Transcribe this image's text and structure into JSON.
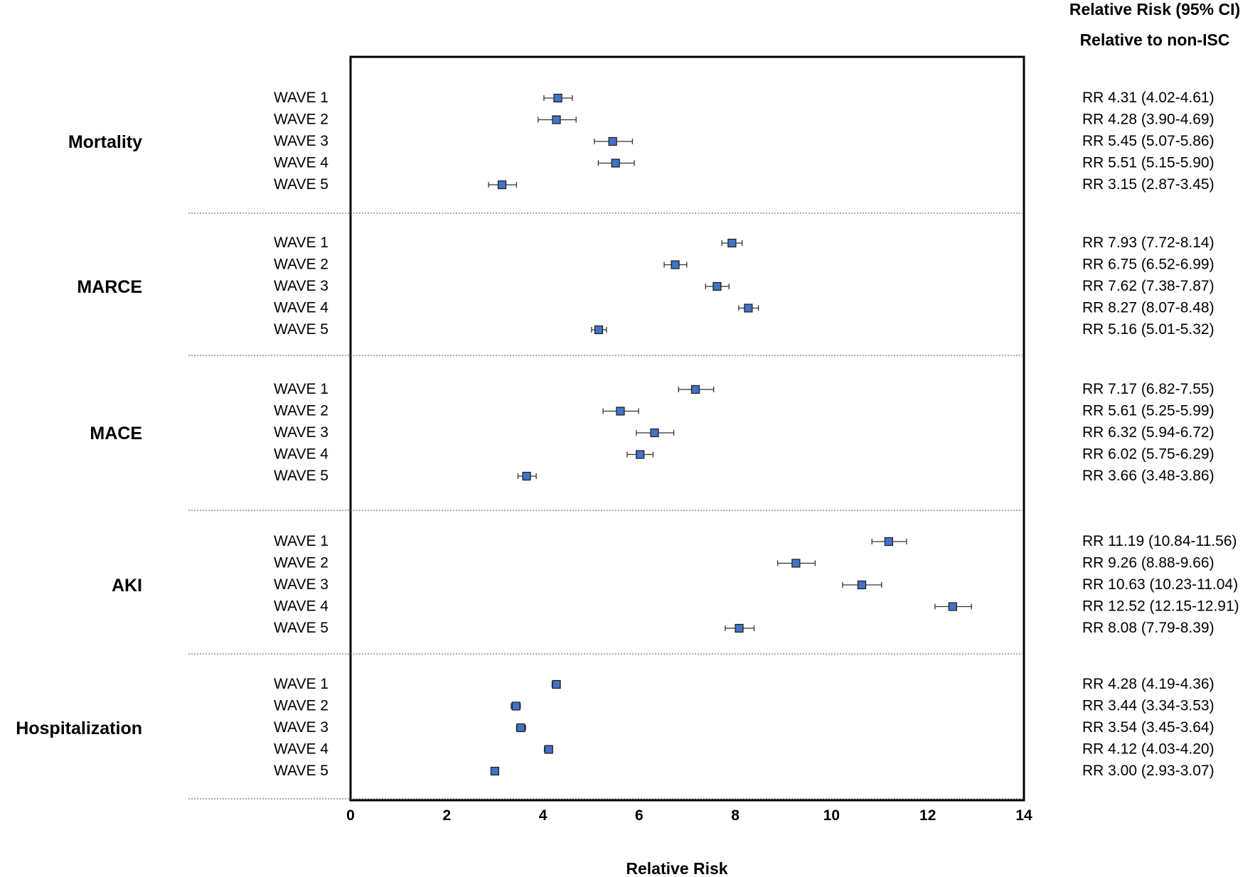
{
  "header": {
    "line1": "Relative Risk (95% CI)",
    "line2": "Relative to non-ISC"
  },
  "chart_data": {
    "type": "forest",
    "xlabel": "Relative Risk",
    "xlim": [
      0,
      14
    ],
    "xticks": [
      0,
      2,
      4,
      6,
      8,
      10,
      12,
      14
    ],
    "marker_color": "#4472c4",
    "groups": [
      {
        "name": "Mortality",
        "rows": [
          {
            "label": "WAVE 1",
            "rr": 4.31,
            "lo": 4.02,
            "hi": 4.61,
            "text": "RR 4.31 (4.02-4.61)"
          },
          {
            "label": "WAVE 2",
            "rr": 4.28,
            "lo": 3.9,
            "hi": 4.69,
            "text": "RR 4.28 (3.90-4.69)"
          },
          {
            "label": "WAVE 3",
            "rr": 5.45,
            "lo": 5.07,
            "hi": 5.86,
            "text": "RR 5.45 (5.07-5.86)"
          },
          {
            "label": "WAVE 4",
            "rr": 5.51,
            "lo": 5.15,
            "hi": 5.9,
            "text": "RR 5.51 (5.15-5.90)"
          },
          {
            "label": "WAVE 5",
            "rr": 3.15,
            "lo": 2.87,
            "hi": 3.45,
            "text": "RR 3.15 (2.87-3.45)"
          }
        ]
      },
      {
        "name": "MARCE",
        "rows": [
          {
            "label": "WAVE 1",
            "rr": 7.93,
            "lo": 7.72,
            "hi": 8.14,
            "text": "RR 7.93 (7.72-8.14)"
          },
          {
            "label": "WAVE 2",
            "rr": 6.75,
            "lo": 6.52,
            "hi": 6.99,
            "text": "RR 6.75 (6.52-6.99)"
          },
          {
            "label": "WAVE 3",
            "rr": 7.62,
            "lo": 7.38,
            "hi": 7.87,
            "text": "RR 7.62 (7.38-7.87)"
          },
          {
            "label": "WAVE 4",
            "rr": 8.27,
            "lo": 8.07,
            "hi": 8.48,
            "text": "RR 8.27 (8.07-8.48)"
          },
          {
            "label": "WAVE 5",
            "rr": 5.16,
            "lo": 5.01,
            "hi": 5.32,
            "text": "RR 5.16 (5.01-5.32)"
          }
        ]
      },
      {
        "name": "MACE",
        "rows": [
          {
            "label": "WAVE 1",
            "rr": 7.17,
            "lo": 6.82,
            "hi": 7.55,
            "text": "RR 7.17 (6.82-7.55)"
          },
          {
            "label": "WAVE 2",
            "rr": 5.61,
            "lo": 5.25,
            "hi": 5.99,
            "text": "RR 5.61 (5.25-5.99)"
          },
          {
            "label": "WAVE 3",
            "rr": 6.32,
            "lo": 5.94,
            "hi": 6.72,
            "text": "RR 6.32 (5.94-6.72)"
          },
          {
            "label": "WAVE 4",
            "rr": 6.02,
            "lo": 5.75,
            "hi": 6.29,
            "text": "RR 6.02 (5.75-6.29)"
          },
          {
            "label": "WAVE 5",
            "rr": 3.66,
            "lo": 3.48,
            "hi": 3.86,
            "text": "RR 3.66 (3.48-3.86)"
          }
        ]
      },
      {
        "name": "AKI",
        "rows": [
          {
            "label": "WAVE 1",
            "rr": 11.19,
            "lo": 10.84,
            "hi": 11.56,
            "text": "RR 11.19 (10.84-11.56)"
          },
          {
            "label": "WAVE 2",
            "rr": 9.26,
            "lo": 8.88,
            "hi": 9.66,
            "text": "RR 9.26 (8.88-9.66)"
          },
          {
            "label": "WAVE 3",
            "rr": 10.63,
            "lo": 10.23,
            "hi": 11.04,
            "text": "RR 10.63 (10.23-11.04)"
          },
          {
            "label": "WAVE 4",
            "rr": 12.52,
            "lo": 12.15,
            "hi": 12.91,
            "text": "RR 12.52 (12.15-12.91)"
          },
          {
            "label": "WAVE 5",
            "rr": 8.08,
            "lo": 7.79,
            "hi": 8.39,
            "text": "RR 8.08 (7.79-8.39)"
          }
        ]
      },
      {
        "name": "Hospitalization",
        "rows": [
          {
            "label": "WAVE 1",
            "rr": 4.28,
            "lo": 4.19,
            "hi": 4.36,
            "text": "RR 4.28 (4.19-4.36)"
          },
          {
            "label": "WAVE 2",
            "rr": 3.44,
            "lo": 3.34,
            "hi": 3.53,
            "text": "RR 3.44 (3.34-3.53)"
          },
          {
            "label": "WAVE 3",
            "rr": 3.54,
            "lo": 3.45,
            "hi": 3.64,
            "text": "RR 3.54 (3.45-3.64)"
          },
          {
            "label": "WAVE 4",
            "rr": 4.12,
            "lo": 4.03,
            "hi": 4.2,
            "text": "RR 4.12 (4.03-4.20)"
          },
          {
            "label": "WAVE 5",
            "rr": 3.0,
            "lo": 2.93,
            "hi": 3.07,
            "text": "RR 3.00 (2.93-3.07)"
          }
        ]
      }
    ]
  }
}
